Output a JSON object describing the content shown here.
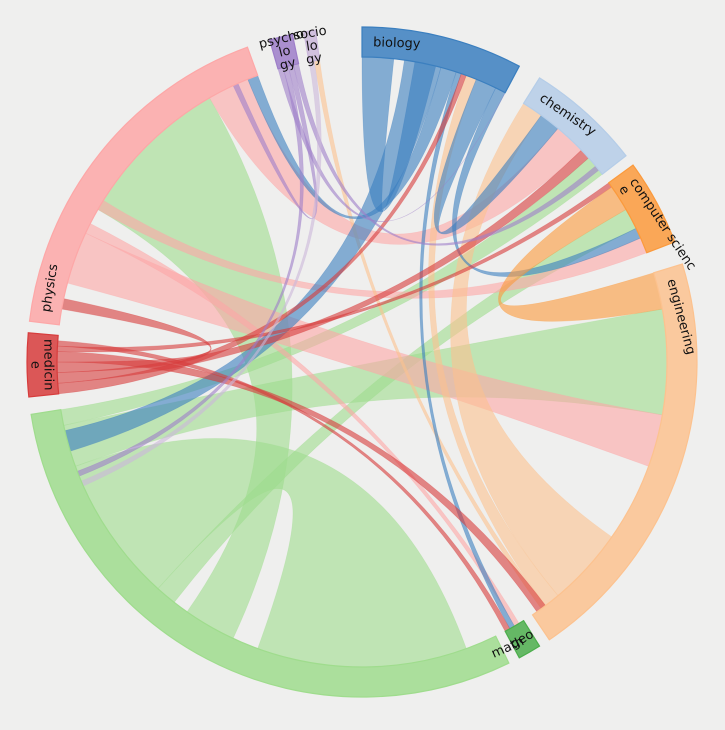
{
  "chart_data": {
    "type": "chord",
    "groups": [
      {
        "id": "biology",
        "label": "biology",
        "color": "#3b7fbf",
        "start": 0,
        "end": 28,
        "label_lines": [
          "biology"
        ]
      },
      {
        "id": "chemistry",
        "label": "chemistry",
        "color": "#b5cde8",
        "start": 32,
        "end": 52,
        "label_lines": [
          "chemistry"
        ]
      },
      {
        "id": "computer-science",
        "label": "computer science",
        "color": "#fb9a3c",
        "start": 54,
        "end": 69,
        "label_lines": [
          "computer scienc",
          "e"
        ]
      },
      {
        "id": "engineering",
        "label": "engineering",
        "color": "#fcc28f",
        "start": 73,
        "end": 146,
        "label_lines": [
          "engineering"
        ]
      },
      {
        "id": "geo",
        "label": "geo",
        "color": "#4cae4c",
        "start": 148,
        "end": 152,
        "label_lines": [
          "geo"
        ]
      },
      {
        "id": "math",
        "label": "math",
        "color": "#9fdc8d",
        "start": 154,
        "end": 261,
        "label_lines": [
          "math"
        ]
      },
      {
        "id": "medicine",
        "label": "medicine",
        "color": "#d73c3c",
        "start": 264,
        "end": 275,
        "label_lines": [
          "medicin",
          "e"
        ]
      },
      {
        "id": "physics",
        "label": "physics",
        "color": "#fda7a7",
        "start": 277,
        "end": 340,
        "label_lines": [
          "physics"
        ]
      },
      {
        "id": "psychology",
        "label": "psychology",
        "color": "#9e7ec9",
        "start": 344,
        "end": 348,
        "label_lines": [
          "psycho",
          "lo",
          "gy"
        ]
      },
      {
        "id": "sociology",
        "label": "sociology",
        "color": "#cbb8db",
        "start": 350,
        "end": 352,
        "label_lines": [
          "socio",
          "lo",
          "gy"
        ]
      }
    ],
    "chords": [
      {
        "source": "math",
        "target": "math",
        "s": [
          160,
          200
        ],
        "t": [
          222,
          250
        ]
      },
      {
        "source": "math",
        "target": "physics",
        "s": [
          205,
          215
        ],
        "t": [
          300,
          330
        ]
      },
      {
        "source": "math",
        "target": "engineering",
        "s": [
          250,
          258
        ],
        "t": [
          80,
          100
        ]
      },
      {
        "source": "math",
        "target": "chemistry",
        "s": [
          258,
          261
        ],
        "t": [
          48,
          52
        ]
      },
      {
        "source": "math",
        "target": "computer-science",
        "s": [
          218,
          222
        ],
        "t": [
          60,
          64
        ]
      },
      {
        "source": "physics",
        "target": "engineering",
        "s": [
          285,
          295
        ],
        "t": [
          100,
          110
        ]
      },
      {
        "source": "physics",
        "target": "chemistry",
        "s": [
          330,
          338
        ],
        "t": [
          40,
          46
        ]
      },
      {
        "source": "physics",
        "target": "computer-science",
        "s": [
          300,
          302
        ],
        "t": [
          66,
          69
        ]
      },
      {
        "source": "physics",
        "target": "geo",
        "s": [
          295,
          297
        ],
        "t": [
          149,
          150
        ]
      },
      {
        "source": "engineering",
        "target": "chemistry",
        "s": [
          125,
          140
        ],
        "t": [
          32,
          36
        ]
      },
      {
        "source": "engineering",
        "target": "biology",
        "s": [
          140,
          143
        ],
        "t": [
          20,
          22
        ]
      },
      {
        "source": "engineering",
        "target": "sociology",
        "s": [
          143,
          144
        ],
        "t": [
          351,
          352
        ]
      },
      {
        "source": "biology",
        "target": "math",
        "s": [
          8,
          15
        ],
        "t": [
          253,
          257
        ]
      },
      {
        "source": "biology",
        "target": "biology",
        "s": [
          0,
          6
        ],
        "t": [
          10,
          14
        ]
      },
      {
        "source": "biology",
        "target": "chemistry",
        "s": [
          22,
          26
        ],
        "t": [
          36,
          40
        ]
      },
      {
        "source": "biology",
        "target": "computer-science",
        "s": [
          26,
          28
        ],
        "t": [
          64,
          66
        ]
      },
      {
        "source": "biology",
        "target": "physics",
        "s": [
          15,
          18
        ],
        "t": [
          338,
          340
        ]
      },
      {
        "source": "biology",
        "target": "geo",
        "s": [
          18,
          19
        ],
        "t": [
          150,
          151
        ]
      },
      {
        "source": "medicine",
        "target": "biology",
        "s": [
          264,
          266
        ],
        "t": [
          19,
          20
        ]
      },
      {
        "source": "medicine",
        "target": "chemistry",
        "s": [
          266,
          268
        ],
        "t": [
          46,
          48
        ]
      },
      {
        "source": "medicine",
        "target": "physics",
        "s": [
          268,
          270
        ],
        "t": [
          280,
          282
        ]
      },
      {
        "source": "medicine",
        "target": "engineering",
        "s": [
          270,
          272
        ],
        "t": [
          143,
          145
        ]
      },
      {
        "source": "medicine",
        "target": "computer-science",
        "s": [
          272,
          273
        ],
        "t": [
          54,
          55
        ]
      },
      {
        "source": "medicine",
        "target": "geo",
        "s": [
          273,
          274
        ],
        "t": [
          151,
          152
        ]
      },
      {
        "source": "psychology",
        "target": "biology",
        "s": [
          344,
          345
        ],
        "t": [
          28,
          28
        ]
      },
      {
        "source": "psychology",
        "target": "math",
        "s": [
          345,
          346
        ],
        "t": [
          248,
          249
        ]
      },
      {
        "source": "psychology",
        "target": "physics",
        "s": [
          346,
          347
        ],
        "t": [
          335,
          336
        ]
      },
      {
        "source": "psychology",
        "target": "chemistry",
        "s": [
          347,
          348
        ],
        "t": [
          50,
          51
        ]
      },
      {
        "source": "sociology",
        "target": "math",
        "s": [
          350,
          351
        ],
        "t": [
          246,
          247
        ]
      },
      {
        "source": "computer-science",
        "target": "engineering",
        "s": [
          55,
          60
        ],
        "t": [
          73,
          80
        ]
      }
    ]
  }
}
